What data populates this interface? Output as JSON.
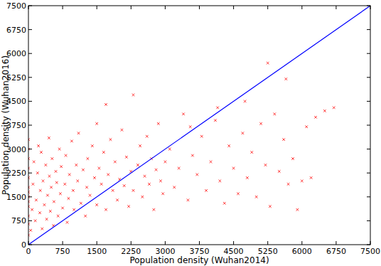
{
  "chart_data": {
    "type": "scatter",
    "x_label": "Population density (Wuhan2014)",
    "y_label": "Population density (Wuhan2016)",
    "xlim": [
      0,
      7500
    ],
    "ylim": [
      0,
      7500
    ],
    "xticks": [
      0,
      750,
      1500,
      2250,
      3000,
      3750,
      4500,
      5250,
      6000,
      6750,
      7500
    ],
    "yticks": [
      0,
      750,
      1500,
      2250,
      3000,
      3750,
      4500,
      5250,
      6000,
      6750,
      7500
    ],
    "grid": false,
    "series": [
      {
        "type": "scatter",
        "color": "#ff0000",
        "marker": "x",
        "x": [
          0,
          0,
          0,
          0,
          0,
          0,
          0,
          0,
          0,
          0,
          0,
          0,
          0,
          50,
          80,
          100,
          120,
          150,
          170,
          200,
          220,
          250,
          260,
          280,
          300,
          320,
          350,
          380,
          400,
          420,
          450,
          460,
          480,
          500,
          520,
          550,
          560,
          600,
          620,
          650,
          680,
          700,
          720,
          750,
          800,
          820,
          850,
          880,
          900,
          950,
          980,
          1000,
          1050,
          1080,
          1100,
          1150,
          1200,
          1250,
          1280,
          1300,
          1350,
          1400,
          1450,
          1500,
          1500,
          1550,
          1600,
          1650,
          1700,
          1750,
          1800,
          1850,
          1900,
          1950,
          2000,
          2050,
          2100,
          2150,
          2200,
          2250,
          1700,
          2300,
          2300,
          2400,
          2450,
          2500,
          2550,
          2600,
          2650,
          2700,
          2750,
          2800,
          2850,
          2900,
          2950,
          3000,
          3100,
          3200,
          3300,
          3400,
          3500,
          3600,
          3700,
          3800,
          3900,
          4000,
          4100,
          4200,
          4300,
          4400,
          4500,
          3550,
          4150,
          4600,
          4700,
          4800,
          4900,
          5000,
          5100,
          5200,
          5300,
          5400,
          5500,
          5600,
          5700,
          5800,
          5900,
          6000,
          6100,
          6300,
          6500,
          6700,
          5250,
          5650,
          6200,
          4750
        ],
        "values": [
          300,
          650,
          900,
          1200,
          1500,
          1800,
          2100,
          2400,
          2700,
          3000,
          3300,
          1650,
          1350,
          450,
          1100,
          1900,
          2600,
          750,
          1400,
          2250,
          3100,
          1000,
          1700,
          2900,
          500,
          2000,
          1250,
          2500,
          800,
          1550,
          3350,
          2150,
          1050,
          1800,
          2700,
          600,
          1350,
          2300,
          1950,
          900,
          3000,
          1600,
          2450,
          1150,
          1900,
          2800,
          700,
          1450,
          2200,
          3250,
          1700,
          1100,
          2500,
          2000,
          3500,
          1300,
          2350,
          900,
          1800,
          2700,
          1550,
          3100,
          2100,
          1250,
          3800,
          2400,
          1900,
          2900,
          1100,
          2200,
          3300,
          1700,
          2600,
          1400,
          2050,
          3600,
          1850,
          2750,
          1200,
          2300,
          4400,
          4700,
          1700,
          2500,
          3100,
          1500,
          2150,
          3400,
          1900,
          2700,
          1100,
          2350,
          3800,
          2000,
          1600,
          2600,
          3000,
          1800,
          2400,
          4100,
          1400,
          2800,
          2200,
          3400,
          1700,
          2600,
          3900,
          2000,
          1300,
          3100,
          2400,
          3700,
          4300,
          1600,
          3500,
          2100,
          2900,
          1500,
          3800,
          2500,
          1200,
          4100,
          2300,
          3300,
          1900,
          2700,
          1100,
          2000,
          3700,
          4000,
          4200,
          4300,
          5700,
          5200,
          2100,
          4500
        ]
      },
      {
        "type": "line",
        "color": "#0000ff",
        "line_style": "solid",
        "x": [
          0,
          7500
        ],
        "values": [
          0,
          7500
        ]
      }
    ]
  }
}
